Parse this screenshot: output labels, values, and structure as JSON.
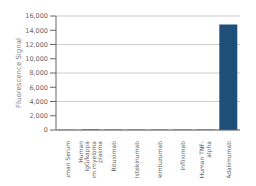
{
  "chart_data": {
    "type": "bar",
    "categories": [
      "Human Serum",
      "Human\nIgG/kappa\nfrom myeloma\nplasma",
      "Rituximab",
      "Ustekinumab",
      "Alemtuzumab",
      "Infliximab",
      "Human TNF-\nalpha",
      "Adalimumab"
    ],
    "values": [
      50,
      80,
      60,
      55,
      50,
      55,
      60,
      14800
    ],
    "color": "#1f4e79",
    "ylabel": "Fluorescence Signal",
    "ylim": [
      0,
      16000
    ],
    "yticks": [
      0,
      {
        "value": 2000,
        "label": "2,000"
      },
      {
        "value": 4000,
        "label": "4,000"
      },
      {
        "value": 6000,
        "label": "6,000"
      },
      {
        "value": 8000,
        "label": "8,000"
      },
      {
        "value": 10000,
        "label": "10,000"
      },
      {
        "value": 12000,
        "label": "12,000"
      },
      {
        "value": 14000,
        "label": "14,000"
      },
      {
        "value": 16000,
        "label": "16,000"
      }
    ],
    "grid": true
  }
}
